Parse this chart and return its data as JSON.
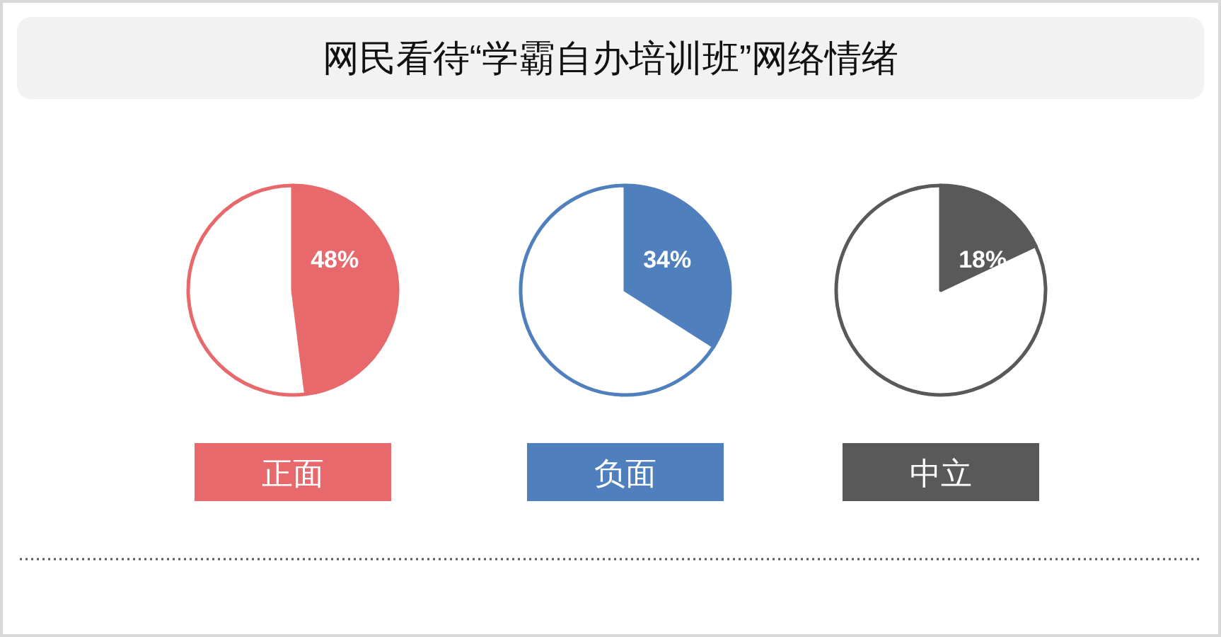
{
  "chart_data": [
    {
      "type": "other",
      "title": "网民看待“学霸自办培训班”网络情绪"
    },
    {
      "type": "pie",
      "title": "正面",
      "categories": [
        null,
        null
      ],
      "values": [
        48,
        52
      ],
      "colors": [
        "#e8696b",
        "#ffffff"
      ],
      "value_labels": [
        "48%",
        null
      ]
    },
    {
      "type": "pie",
      "title": "负面",
      "categories": [
        null,
        null
      ],
      "values": [
        34,
        66
      ],
      "colors": [
        "#4f7fbc",
        "#ffffff"
      ],
      "value_labels": [
        "34%",
        null
      ]
    },
    {
      "type": "pie",
      "title": "中立",
      "categories": [
        null,
        null
      ],
      "values": [
        18,
        82
      ],
      "colors": [
        "#595959",
        "#ffffff"
      ],
      "value_labels": [
        "18%",
        null
      ]
    }
  ]
}
